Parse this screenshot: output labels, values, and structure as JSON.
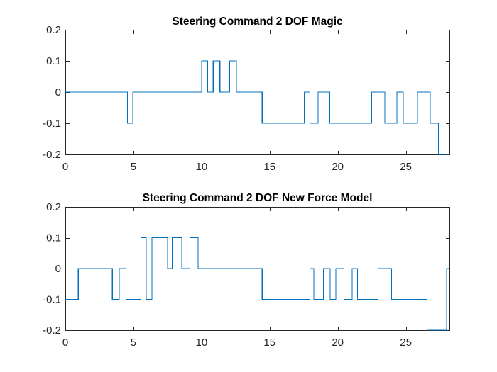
{
  "colors": {
    "series": "#0072BD",
    "axes": "#262626"
  },
  "chart_data": [
    {
      "type": "line",
      "title": "Steering Command 2 DOF Magic",
      "xlabel": "",
      "ylabel": "",
      "xlim": [
        0,
        28.2
      ],
      "ylim": [
        -0.2,
        0.2
      ],
      "xticks": [
        0,
        5,
        10,
        15,
        20,
        25
      ],
      "yticks": [
        -0.2,
        -0.1,
        0,
        0.1,
        0.2
      ],
      "xtick_labels": [
        "0",
        "5",
        "10",
        "15",
        "20",
        "25"
      ],
      "ytick_labels": [
        "-0.2",
        "-0.1",
        "0",
        "0.1",
        "0.2"
      ],
      "grid": false,
      "series": [
        {
          "step": true,
          "x": [
            0,
            4.55,
            4.95,
            10.0,
            10.45,
            10.85,
            11.35,
            12.05,
            12.55,
            14.45,
            17.55,
            17.95,
            18.55,
            19.4,
            20.05,
            22.5,
            23.45,
            24.35,
            24.8,
            25.85,
            26.8,
            27.4,
            28.2
          ],
          "y": [
            0,
            -0.1,
            0,
            0.1,
            0,
            0.1,
            0,
            0.1,
            0,
            -0.1,
            0,
            -0.1,
            0,
            -0.1,
            -0.1,
            0,
            -0.1,
            0,
            -0.1,
            0,
            -0.1,
            -0.2,
            -0.2
          ]
        }
      ]
    },
    {
      "type": "line",
      "title": "Steering Command 2 DOF New Force Model",
      "xlabel": "",
      "ylabel": "",
      "xlim": [
        0,
        28.2
      ],
      "ylim": [
        -0.2,
        0.2
      ],
      "xticks": [
        0,
        5,
        10,
        15,
        20,
        25
      ],
      "yticks": [
        -0.2,
        -0.1,
        0,
        0.1,
        0.2
      ],
      "xtick_labels": [
        "0",
        "5",
        "10",
        "15",
        "20",
        "25"
      ],
      "ytick_labels": [
        "-0.2",
        "-0.1",
        "0",
        "0.1",
        "0.2"
      ],
      "grid": false,
      "series": [
        {
          "step": true,
          "x": [
            0,
            0.95,
            3.45,
            3.95,
            4.45,
            5.55,
            5.95,
            6.35,
            6.45,
            7.5,
            7.85,
            8.05,
            8.55,
            9.15,
            9.75,
            14.45,
            17.95,
            18.25,
            18.95,
            19.45,
            19.85,
            20.45,
            21.05,
            21.45,
            22.95,
            23.95,
            26.55,
            28.0,
            28.2
          ],
          "y": [
            -0.1,
            0,
            -0.1,
            0,
            -0.1,
            0.1,
            -0.1,
            0.1,
            0.1,
            0,
            0.1,
            0.1,
            0,
            0.1,
            0,
            -0.1,
            0,
            -0.1,
            0,
            -0.1,
            0,
            -0.1,
            0,
            -0.1,
            0,
            -0.1,
            -0.2,
            0,
            0
          ]
        }
      ]
    }
  ]
}
